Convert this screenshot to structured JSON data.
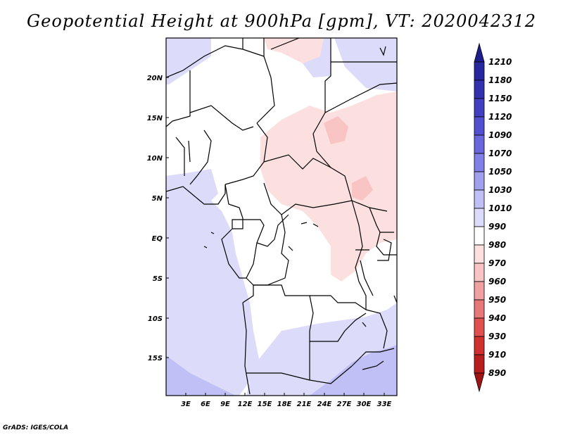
{
  "title": "Geopotential Height at 900hPa [gpm], VT: 2020042312",
  "credit": "GrADS: IGES/COLA",
  "map": {
    "lat_labels": [
      "20N",
      "15N",
      "10N",
      "5N",
      "EQ",
      "5S",
      "10S",
      "15S"
    ],
    "lon_labels": [
      "3E",
      "6E",
      "9E",
      "12E",
      "15E",
      "18E",
      "21E",
      "24E",
      "27E",
      "30E",
      "33E"
    ]
  },
  "colorbar": {
    "labels": [
      "1210",
      "1180",
      "1150",
      "1120",
      "1090",
      "1070",
      "1050",
      "1030",
      "1010",
      "990",
      "980",
      "970",
      "960",
      "950",
      "940",
      "930",
      "910",
      "890"
    ],
    "colors": [
      "#1e1e8c",
      "#28289e",
      "#3232b0",
      "#4040c0",
      "#5050d0",
      "#6868dc",
      "#8080e6",
      "#a0a0ee",
      "#c0c0f6",
      "#dcdcfa",
      "#ffffff",
      "#fce0e0",
      "#f8c4c4",
      "#f0a0a0",
      "#e87878",
      "#e05050",
      "#d03030",
      "#b81e1e",
      "#a01414"
    ]
  }
}
